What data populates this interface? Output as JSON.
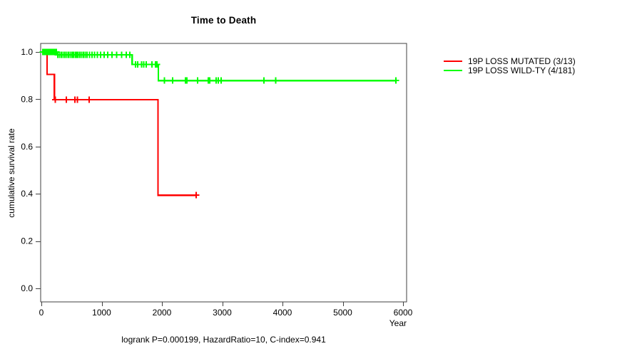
{
  "chart_data": {
    "type": "line",
    "subtype": "kaplan-meier-step",
    "title": "Time to Death",
    "xlabel": "Year",
    "ylabel": "cumulative survival rate",
    "annotation": "logrank P=0.000199, HazardRatio=10, C-index=0.941",
    "xlim": [
      0,
      6000
    ],
    "ylim": [
      0.0,
      1.0
    ],
    "xticks": [
      0,
      1000,
      2000,
      3000,
      4000,
      5000,
      6000
    ],
    "yticks": [
      0.0,
      0.2,
      0.4,
      0.6,
      0.8,
      1.0
    ],
    "grid": false,
    "legend_position": "right-outside",
    "legend": [
      {
        "label": "19P LOSS MUTATED (3/13)",
        "color": "#FF0000"
      },
      {
        "label": "19P LOSS WILD-TY (4/181)",
        "color": "#00FF00"
      }
    ],
    "series": [
      {
        "name": "19P LOSS MUTATED (3/13)",
        "color": "#FF0000",
        "steps": [
          [
            0,
            1.0
          ],
          [
            95,
            0.905
          ],
          [
            215,
            0.798
          ],
          [
            1935,
            0.394
          ],
          [
            2570,
            0.394
          ]
        ],
        "censors": [
          [
            230,
            0.798
          ],
          [
            415,
            0.798
          ],
          [
            555,
            0.798
          ],
          [
            600,
            0.798
          ],
          [
            790,
            0.798
          ],
          [
            2570,
            0.394
          ]
        ]
      },
      {
        "name": "19P LOSS WILD-TY (4/181)",
        "color": "#00FF00",
        "steps": [
          [
            0,
            1.0
          ],
          [
            265,
            0.988
          ],
          [
            1505,
            0.947
          ],
          [
            1940,
            0.879
          ],
          [
            5880,
            0.879
          ]
        ],
        "censors": [
          [
            25,
            1.0
          ],
          [
            45,
            1.0
          ],
          [
            60,
            1.0
          ],
          [
            75,
            1.0
          ],
          [
            90,
            1.0
          ],
          [
            110,
            1.0
          ],
          [
            125,
            1.0
          ],
          [
            140,
            1.0
          ],
          [
            155,
            1.0
          ],
          [
            170,
            1.0
          ],
          [
            185,
            1.0
          ],
          [
            205,
            1.0
          ],
          [
            225,
            1.0
          ],
          [
            250,
            1.0
          ],
          [
            275,
            0.988
          ],
          [
            300,
            0.988
          ],
          [
            330,
            0.988
          ],
          [
            360,
            0.988
          ],
          [
            390,
            0.988
          ],
          [
            420,
            0.988
          ],
          [
            450,
            0.988
          ],
          [
            480,
            0.988
          ],
          [
            510,
            0.988
          ],
          [
            535,
            0.988
          ],
          [
            560,
            0.988
          ],
          [
            585,
            0.988
          ],
          [
            610,
            0.988
          ],
          [
            640,
            0.988
          ],
          [
            670,
            0.988
          ],
          [
            700,
            0.988
          ],
          [
            730,
            0.988
          ],
          [
            760,
            0.988
          ],
          [
            800,
            0.988
          ],
          [
            840,
            0.988
          ],
          [
            880,
            0.988
          ],
          [
            930,
            0.988
          ],
          [
            980,
            0.988
          ],
          [
            1040,
            0.988
          ],
          [
            1100,
            0.988
          ],
          [
            1170,
            0.988
          ],
          [
            1250,
            0.988
          ],
          [
            1330,
            0.988
          ],
          [
            1410,
            0.988
          ],
          [
            1470,
            0.988
          ],
          [
            1560,
            0.947
          ],
          [
            1600,
            0.947
          ],
          [
            1660,
            0.947
          ],
          [
            1700,
            0.947
          ],
          [
            1740,
            0.947
          ],
          [
            1835,
            0.947
          ],
          [
            1895,
            0.947
          ],
          [
            1920,
            0.947
          ],
          [
            2040,
            0.879
          ],
          [
            2180,
            0.879
          ],
          [
            2390,
            0.879
          ],
          [
            2415,
            0.879
          ],
          [
            2590,
            0.879
          ],
          [
            2770,
            0.879
          ],
          [
            2795,
            0.879
          ],
          [
            2900,
            0.879
          ],
          [
            2935,
            0.879
          ],
          [
            2980,
            0.879
          ],
          [
            3690,
            0.879
          ],
          [
            3890,
            0.879
          ],
          [
            5880,
            0.879
          ]
        ]
      }
    ]
  }
}
